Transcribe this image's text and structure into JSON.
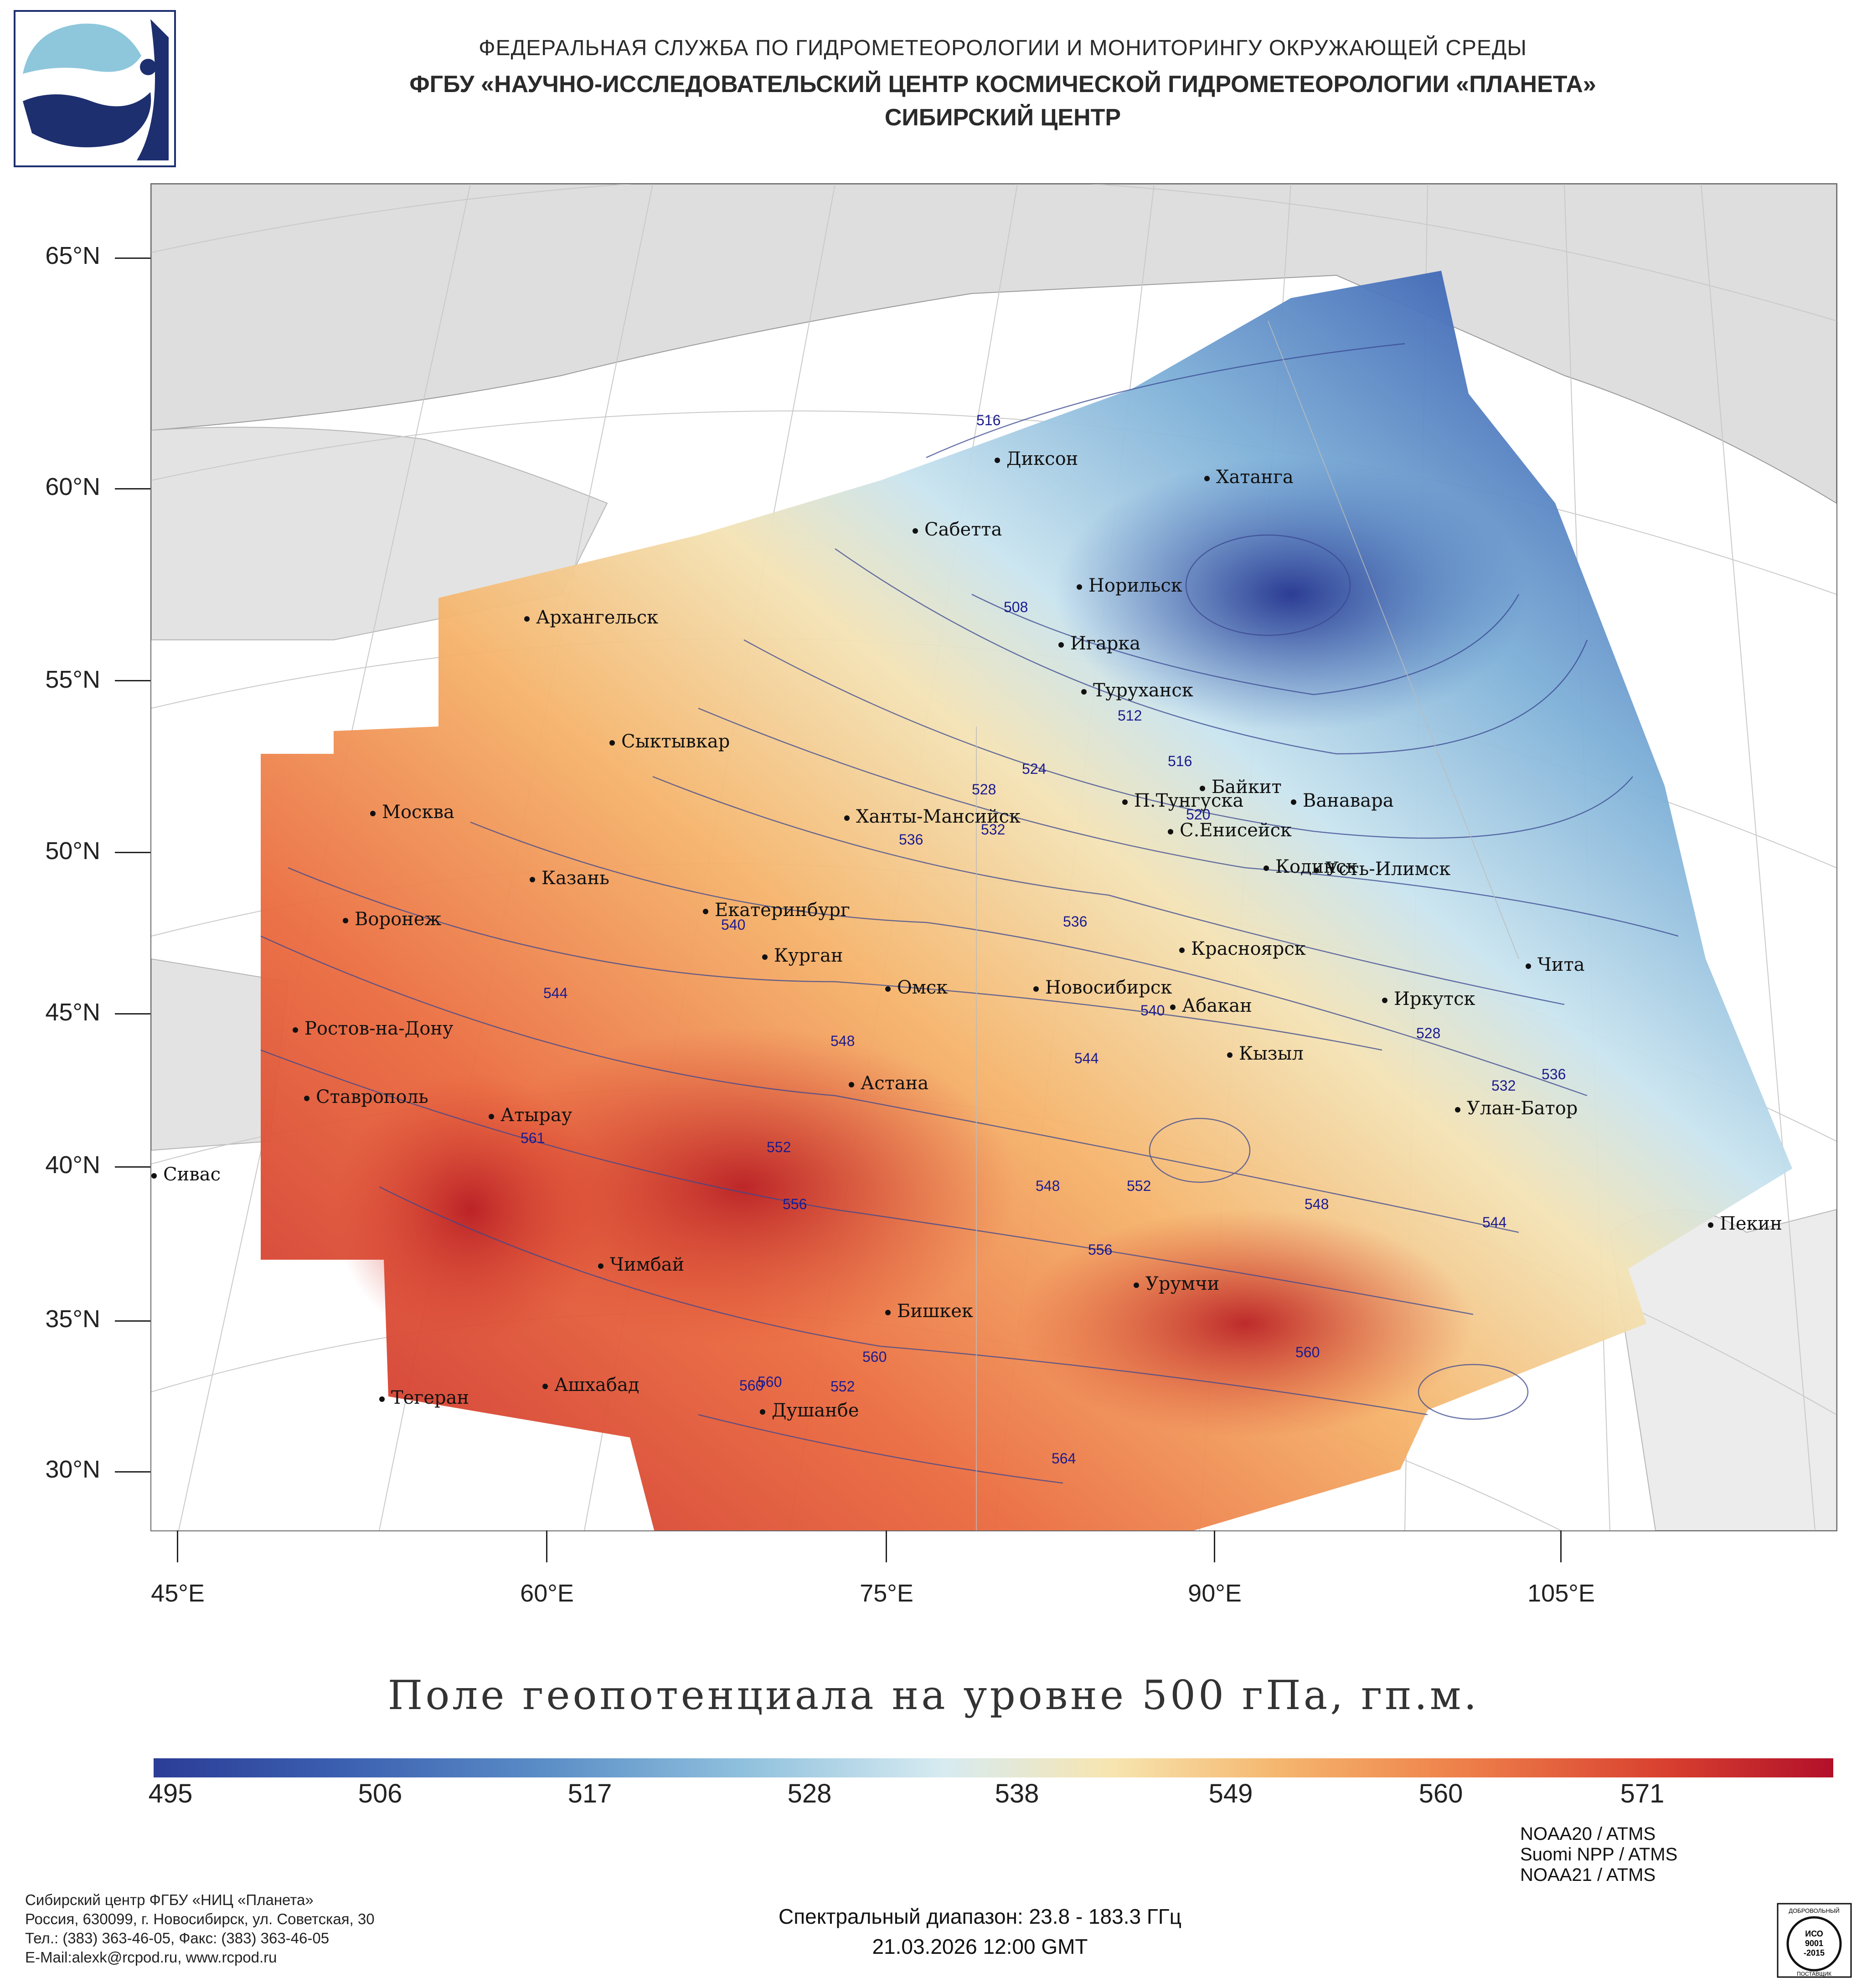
{
  "header": {
    "line1": "ФЕДЕРАЛЬНАЯ СЛУЖБА ПО ГИДРОМЕТЕОРОЛОГИИ И МОНИТОРИНГУ ОКРУЖАЮЩЕЙ СРЕДЫ",
    "line2": "ФГБУ «НАУЧНО-ИССЛЕДОВАТЕЛЬСКИЙ ЦЕНТР КОСМИЧЕСКОЙ ГИДРОМЕТЕОРОЛОГИИ «ПЛАНЕТА»",
    "line3": "СИБИРСКИЙ ЦЕНТР"
  },
  "map": {
    "lat_labels": [
      "65°N",
      "60°N",
      "55°N",
      "50°N",
      "45°N",
      "40°N",
      "35°N",
      "30°N"
    ],
    "lon_labels": [
      "45°E",
      "60°E",
      "75°E",
      "90°E",
      "105°E"
    ],
    "cities": [
      {
        "name": "Диксон"
      },
      {
        "name": "Хатанга"
      },
      {
        "name": "Сабетта"
      },
      {
        "name": "Норильск"
      },
      {
        "name": "Архангельск"
      },
      {
        "name": "Игарка"
      },
      {
        "name": "Туруханск"
      },
      {
        "name": "Сыктывкар"
      },
      {
        "name": "Байкит"
      },
      {
        "name": "Москва"
      },
      {
        "name": "Ханты-Мансийск"
      },
      {
        "name": "П.Тунгуска"
      },
      {
        "name": "Ванавара"
      },
      {
        "name": "С.Енисейск"
      },
      {
        "name": "Казань"
      },
      {
        "name": "Кодинск"
      },
      {
        "name": "Усть-Илимск"
      },
      {
        "name": "Екатеринбург"
      },
      {
        "name": "Воронеж"
      },
      {
        "name": "Курган"
      },
      {
        "name": "Красноярск"
      },
      {
        "name": "Чита"
      },
      {
        "name": "Омск"
      },
      {
        "name": "Новосибирск"
      },
      {
        "name": "Иркутск"
      },
      {
        "name": "Абакан"
      },
      {
        "name": "Ростов-на-Дону"
      },
      {
        "name": "Кызыл"
      },
      {
        "name": "Астана"
      },
      {
        "name": "Ставрополь"
      },
      {
        "name": "Улан-Батор"
      },
      {
        "name": "Атырау"
      },
      {
        "name": "Сивас"
      },
      {
        "name": "Пекин"
      },
      {
        "name": "Чимбай"
      },
      {
        "name": "Урумчи"
      },
      {
        "name": "Бишкек"
      },
      {
        "name": "Ашхабад"
      },
      {
        "name": "Тегеран"
      },
      {
        "name": "Душанбе"
      }
    ],
    "contour_labels": [
      "516",
      "508",
      "512",
      "516",
      "520",
      "524",
      "528",
      "532",
      "536",
      "536",
      "540",
      "540",
      "544",
      "544",
      "548",
      "548",
      "552",
      "552",
      "556",
      "556",
      "560",
      "560",
      "564",
      "528",
      "532",
      "536",
      "544",
      "548",
      "560",
      "552",
      "560",
      "561"
    ]
  },
  "title": "Поле геопотенциала на уровне 500 гПа, гп.м.",
  "colorbar": {
    "ticks": [
      "495",
      "506",
      "517",
      "528",
      "538",
      "549",
      "560",
      "571"
    ],
    "colors": [
      "#2b3d96",
      "#3b5fb0",
      "#5a8cc6",
      "#8fc0dd",
      "#d7ebf1",
      "#f7e5b0",
      "#f5b66e",
      "#ee7f4a",
      "#d8402f",
      "#b2102a"
    ]
  },
  "footer": {
    "org1": "Сибирский центр ФГБУ «НИЦ «Планета»",
    "org2": "Россия, 630099, г. Новосибирск, ул. Советская, 30",
    "org3": "Тел.: (383) 363-46-05, Факс: (383) 363-46-05",
    "org4": "E-Mail:alexk@rcpod.ru, www.rcpod.ru",
    "sat1": "NOAA20 / ATMS",
    "sat2": "Suomi NPP / ATMS",
    "sat3": "NOAA21 / ATMS",
    "spectral": "Спектральный диапазон: 23.8 - 183.3 ГГц",
    "datetime": "21.03.2026 12:00 GMT",
    "iso_top": "ДОБРОВОЛЬНЫЙ",
    "iso_mid1": "ИСО",
    "iso_mid2": "9001",
    "iso_mid3": "-2015",
    "iso_bottom": "ПОСТАВЩИК"
  }
}
